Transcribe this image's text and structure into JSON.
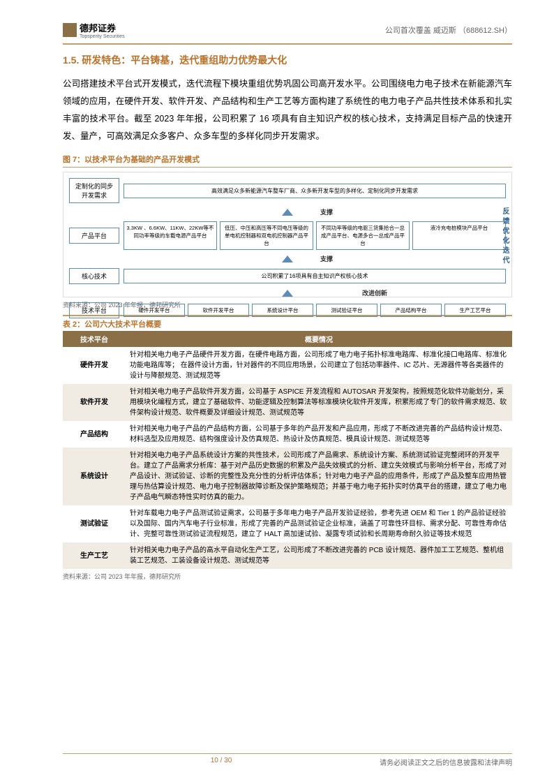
{
  "header": {
    "company": "德邦证券",
    "company_en": "Topsperity Securities",
    "right_text": "公司首次覆盖  威迈斯",
    "ticker": "（688612.SH）"
  },
  "section": {
    "title": "1.5. 研发特色：平台铸基，迭代重组助力优势最大化",
    "para": "公司搭建技术平台式开发模式，迭代流程下模块重组优势巩固公司高开发水平。公司围绕电力电子技术在新能源汽车领域的应用，在硬件开发、软件开发、产品结构和生产工艺等方面构建了系统性的电力电子产品共性技术体系和扎实丰富的技术平台。截至 2023 年年报，公司积累了 16 项具有自主知识产权的核心技术，支持满足目标产品的快速开发、量产，可高效满足众多客户、众多车型的多样化同步开发需求。"
  },
  "figure": {
    "title": "图 7：以技术平台为基础的产品开发模式",
    "source": "资料来源：公司 2023 年年报，德邦研究所",
    "row1_label": "定制化的同步开发需求",
    "row1_box": "高效满足众多新能源汽车整车厂商、众多新开发车型的多样化、定制化同步开发需求",
    "row2_label": "产品平台",
    "row2_b1": "3.3KW 、6.6KW、11KW、22KW等不同功率等级的车载电源产品平台",
    "row2_b2": "低压、中压和高压等不同电压等级的单电机控制器和双电机控制器产品平台",
    "row2_b3": "不同功率等级的电驱三货集拾合一总成产品平台、电源多合一总成产品平台",
    "row2_b4": "液冷充电桩模块产品平台",
    "row3_label": "核心技术",
    "row3_box": "公司积累了16项具有自主知识产权核心技术",
    "row4_label": "技术平台",
    "row4_items": [
      "硬件开发平台",
      "软件开发平台",
      "系统设计平台",
      "测试验证平台",
      "产品结构平台",
      "生产工艺平台"
    ],
    "support": "支撑",
    "innovate": "改进创新",
    "side": "反馈优化迭代"
  },
  "table": {
    "title": "表 2：公司六大技术平台概要",
    "header": [
      "技术平台",
      "概要情况"
    ],
    "rows": [
      [
        "硬件开发",
        "针对相关电力电子产品硬件开发方面，在硬件电路方面，公司形成了电力电子拓扑标准电路库、标准化接口电路库、标准化功能电路库等；  在器件设计方面，针对器件的不同应用场景，公司建立了包括功率器件、IC 芯片、无源器件等各类器件的设计与降额规范、测试规范等"
      ],
      [
        "软件开发",
        "针对相关电力电子产品软件开发方面，公司基于 ASPICE 开发流程和 AUTOSAR 开发架构，按照规范化软件功能划分，采用模块化编程方式，建立了基础软件、功能逻辑及控制算法等标准模块化软件开发库，积累形成了专门的软件需求规范、软件架构设计规范、软件概要及详细设计规范、测试规范等"
      ],
      [
        "产品结构",
        "针对相关电力电子产品的产品结构方面，公司基于多年的产品开发和产品应用，形成了不断改进完善的产品结构设计规范、材料选型及应用规范、结构强度设计及仿真规范、热设计及仿真规范、模具设计规范、测试规范等"
      ],
      [
        "系统设计",
        "针对相关电力电子产品系统设计方案的共性技术，公司形成了产品需求、系统设计方案、系统测试验证完整闭环的开发平台。建立了产品需求分析库：基于对产品历史数据的积累及产品失效模式的分析、建立失效模式与影响分析平台，形成了对产品设计、测试验证、诊断的完整性及充分性的分析评估体系；针对电力电子产品的应用条件，形成了产品及整车应用热管理与热估算设计规范、电力电子控制器故障诊断及保护策略规范；并基于电力电子拓扑实时仿真平台的搭建，建立了电力电子产品电气瞬态特性实时仿真的能力。"
      ],
      [
        "测试验证",
        "针对车载电力电子产品测试验证需求，公司基于多年电力电子产品开发验证经验，参考先进 OEM 和 Tier 1 的产品验证经验以及国际、国内汽车电子行业标准，形成了完善的产品测试验证企业标准，涵盖了可靠性环目标、需求分配、可靠性寿命估计、完整可靠性测试验证流程规范，建立了 HALT 高加速试验、凝露专项试验和长周期寿命耐久验证等技术规范"
      ],
      [
        "生产工艺",
        "针对相关电力电子产品的高水平自动化生产工艺，公司形成了不断改进完善的 PCB 设计规范、器件加工工艺规范、整机组装工艺规范、工装设备设计规范、测试规范等"
      ]
    ],
    "source": "资料来源：公司 2023 年年报，德邦研究所"
  },
  "footer": {
    "page": "10 / 30",
    "disclaimer": "请务必阅读正文之后的信息披露和法律声明"
  }
}
